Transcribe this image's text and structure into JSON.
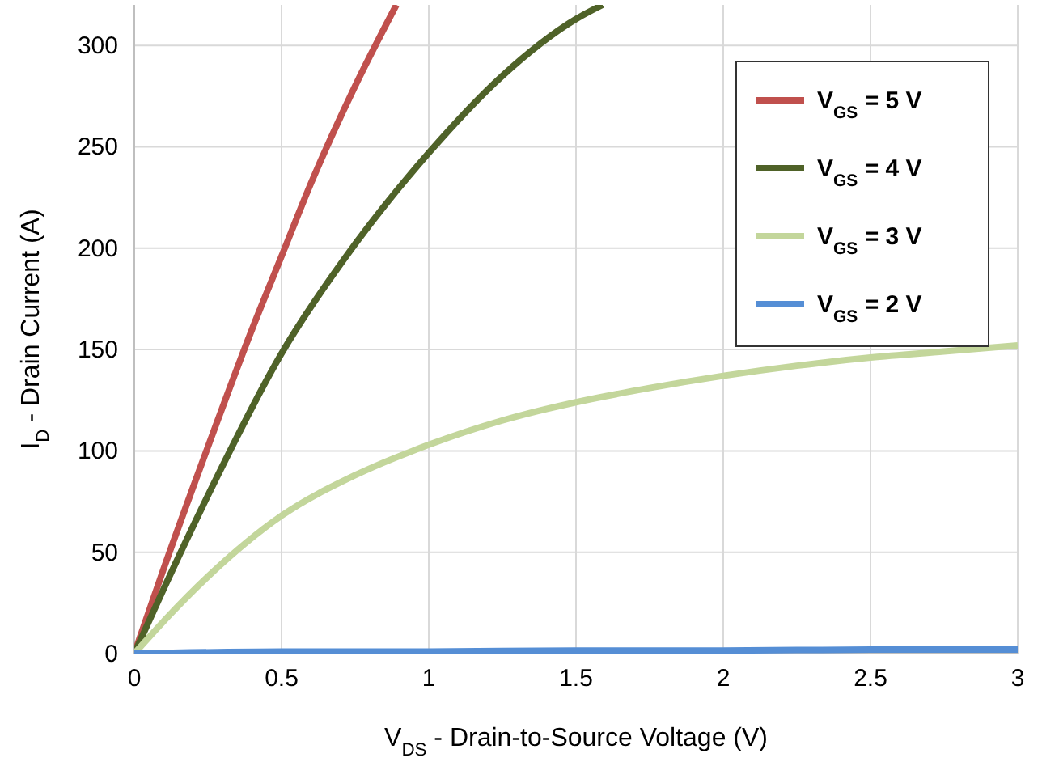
{
  "chart_data": {
    "type": "line",
    "xlabel": "V$_{DS}$ - Drain-to-Source Voltage (V)",
    "ylabel": "I$_{D}$ - Drain Current (A)",
    "xlim": [
      0,
      3
    ],
    "ylim": [
      0,
      320
    ],
    "xticks": [
      0,
      0.5,
      1,
      1.5,
      2,
      2.5,
      3
    ],
    "yticks": [
      0,
      50,
      100,
      150,
      200,
      250,
      300
    ],
    "grid": true,
    "legend": "top right",
    "line_style": "solid",
    "series": [
      {
        "name": "V$_{GS}$ = 5 V",
        "color": "#c0504d",
        "x": [
          0,
          0.1,
          0.25,
          0.4,
          0.5,
          0.6,
          0.75,
          0.89
        ],
        "values": [
          0,
          42,
          102,
          160,
          196,
          232,
          280,
          320
        ]
      },
      {
        "name": "V$_{GS}$ = 4 V",
        "color": "#4f6228",
        "x": [
          0,
          0.1,
          0.25,
          0.5,
          0.75,
          1,
          1.25,
          1.5,
          1.59
        ],
        "values": [
          0,
          32,
          78,
          148,
          202,
          247,
          285,
          313,
          320
        ]
      },
      {
        "name": "V$_{GS}$ = 3 V",
        "color": "#c3d69b",
        "x": [
          0,
          0.1,
          0.25,
          0.5,
          0.75,
          1,
          1.25,
          1.5,
          1.75,
          2,
          2.25,
          2.5,
          2.75,
          3
        ],
        "values": [
          0,
          16,
          38,
          68,
          88,
          103,
          115,
          124,
          131,
          137,
          142,
          146,
          149,
          152
        ]
      },
      {
        "name": "V$_{GS}$ = 2 V",
        "color": "#558ed5",
        "x": [
          0,
          0.5,
          1,
          1.5,
          2,
          2.5,
          3
        ],
        "values": [
          0,
          1,
          1,
          1.5,
          1.5,
          2,
          2
        ]
      }
    ]
  }
}
